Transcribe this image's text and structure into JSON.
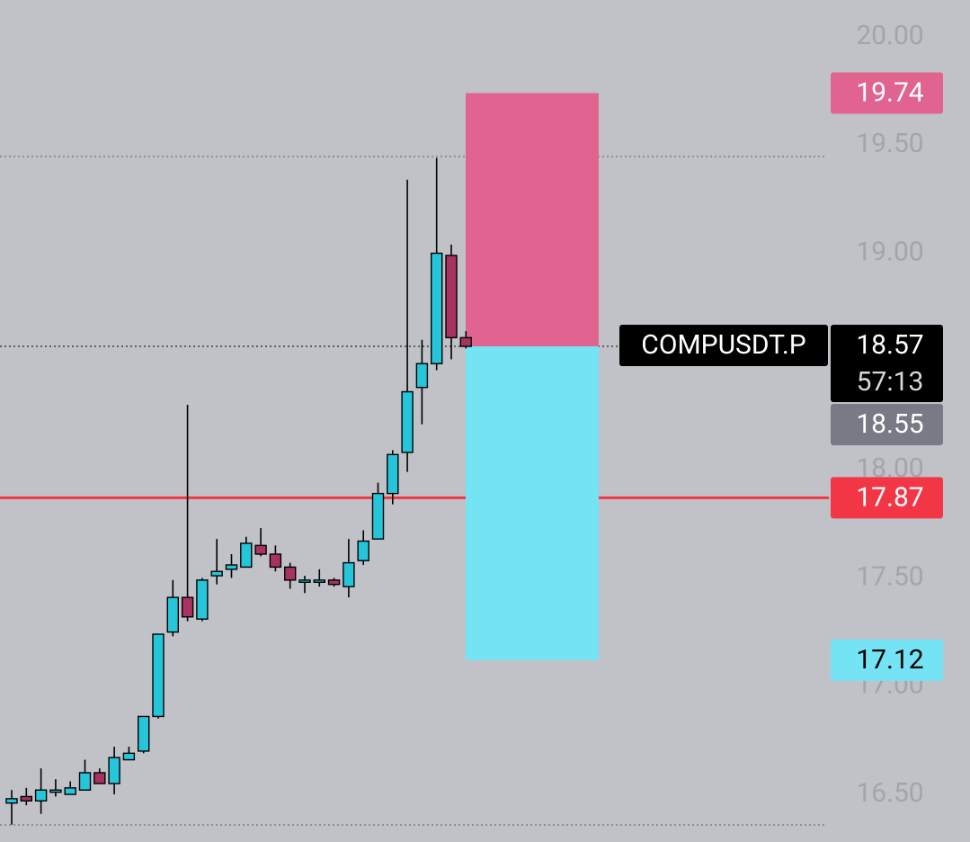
{
  "chart_data": {
    "type": "candlestick",
    "symbol": "COMPUSDT.P",
    "countdown": "57:13",
    "last_price": 18.57,
    "mark_price": 18.55,
    "ylim": [
      16.28,
      20.17
    ],
    "yticks": [
      {
        "value": 16.5,
        "label": "16.50"
      },
      {
        "value": 17.0,
        "label": "17.00"
      },
      {
        "value": 17.5,
        "label": "17.50"
      },
      {
        "value": 18.0,
        "label": "18.00"
      },
      {
        "value": 19.0,
        "label": "19.00"
      },
      {
        "value": 19.5,
        "label": "19.50"
      },
      {
        "value": 20.0,
        "label": "20.00"
      }
    ],
    "up_color": "#26c6da",
    "down_color": "#a8335e",
    "open": [
      16.46,
      16.49,
      16.47,
      16.51,
      16.5,
      16.52,
      16.6,
      16.55,
      16.66,
      16.7,
      16.86,
      17.25,
      17.41,
      17.31,
      17.51,
      17.54,
      17.55,
      17.65,
      17.61,
      17.55,
      17.48,
      17.48,
      17.49,
      17.46,
      17.58,
      17.68,
      17.89,
      18.08,
      18.38,
      18.49,
      18.99,
      18.61
    ],
    "high": [
      16.52,
      16.53,
      16.62,
      16.57,
      16.56,
      16.66,
      16.62,
      16.72,
      16.72,
      16.86,
      17.24,
      17.49,
      18.3,
      17.5,
      17.68,
      17.61,
      17.69,
      17.73,
      17.65,
      17.57,
      17.51,
      17.54,
      17.5,
      17.68,
      17.72,
      17.94,
      18.09,
      19.34,
      18.6,
      19.44,
      19.04,
      18.64
    ],
    "low": [
      16.36,
      16.45,
      16.41,
      16.49,
      16.5,
      16.52,
      16.55,
      16.5,
      16.66,
      16.69,
      16.85,
      17.23,
      17.3,
      17.3,
      17.47,
      17.5,
      17.55,
      17.6,
      17.53,
      17.45,
      17.43,
      17.46,
      17.46,
      17.41,
      17.56,
      17.68,
      17.84,
      17.99,
      18.21,
      18.46,
      18.51,
      18.56
    ],
    "close": [
      16.48,
      16.47,
      16.52,
      16.52,
      16.53,
      16.6,
      16.55,
      16.67,
      16.69,
      16.86,
      17.24,
      17.41,
      17.32,
      17.49,
      17.53,
      17.56,
      17.66,
      17.61,
      17.55,
      17.49,
      17.49,
      17.49,
      17.47,
      17.57,
      17.67,
      17.89,
      18.07,
      18.36,
      18.49,
      19.0,
      18.61,
      18.57
    ],
    "position": {
      "stop": 19.74,
      "entry": 18.57,
      "target": 17.12,
      "stop_color": "#e0648f",
      "target_color": "#74e3f4"
    },
    "level_line": {
      "value": 17.87,
      "color": "#f23645"
    }
  }
}
